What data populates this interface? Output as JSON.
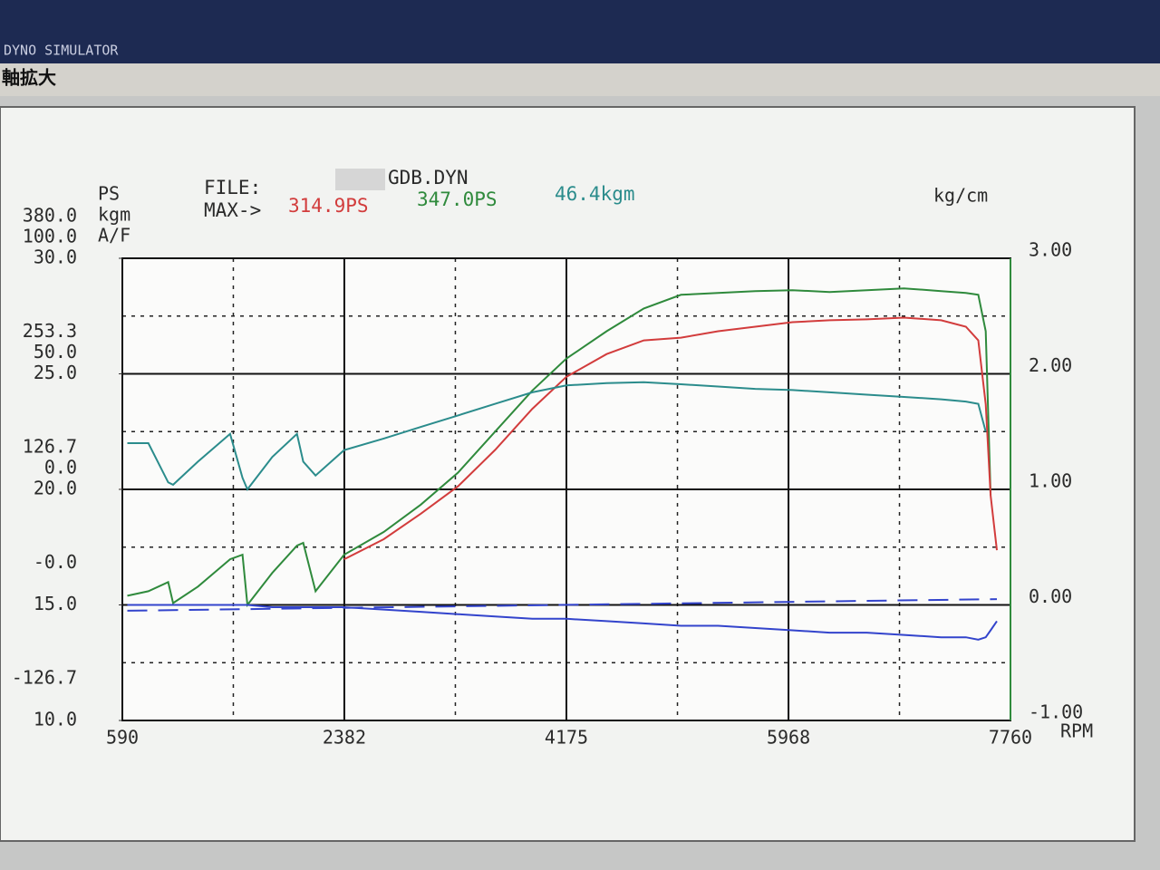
{
  "window": {
    "title": "DYNO SIMULATOR",
    "menu": "軸拡大"
  },
  "chart_data": {
    "type": "line",
    "file_label": "FILE:",
    "file_name": "GDB.DYN",
    "max_label": "MAX->",
    "max_values": [
      "314.9PS",
      "347.0PS",
      "46.4kgm"
    ],
    "x_label": "RPM",
    "x": [
      630,
      800,
      960,
      1000,
      1200,
      1460,
      1560,
      1600,
      1800,
      2000,
      2050,
      2150,
      2380,
      2700,
      3000,
      3300,
      3600,
      3900,
      4175,
      4500,
      4800,
      5100,
      5400,
      5700,
      6000,
      6300,
      6600,
      6900,
      7200,
      7400,
      7500,
      7560,
      7600,
      7650
    ],
    "xlim": [
      590,
      7760
    ],
    "xticks": [
      590,
      2382,
      4175,
      5968,
      7760
    ],
    "grid": true,
    "y_axes": [
      {
        "label": "PS",
        "color": "#c8302f",
        "ylim": [
          -126.7,
          380
        ],
        "yticks": [
          {
            "value": 380,
            "label": "380.0"
          },
          253.3,
          126.7,
          {
            "value": 0,
            "label": "-0.0"
          },
          -126.7
        ]
      },
      {
        "label": "kgm",
        "color": "#333333",
        "ylim": [
          -100,
          100
        ],
        "yticks": [
          {
            "value": 100,
            "label": "100.0"
          },
          {
            "value": 50,
            "label": "50.0"
          },
          {
            "value": 0,
            "label": "0.0"
          }
        ]
      },
      {
        "label": "A/F",
        "color": "#333333",
        "ylim": [
          10,
          30
        ],
        "yticks": [
          {
            "value": 30,
            "label": "30.0"
          },
          {
            "value": 25,
            "label": "25.0"
          },
          {
            "value": 20,
            "label": "20.0"
          },
          {
            "value": 15,
            "label": "15.0"
          },
          {
            "value": 10,
            "label": "10.0"
          }
        ]
      },
      {
        "label": "kg/cm",
        "color": "#222222",
        "ylim": [
          -1,
          3
        ],
        "yticks": [
          {
            "value": 3,
            "label": "3.00"
          },
          {
            "value": 2,
            "label": "2.00"
          },
          {
            "value": 1,
            "label": "1.00"
          },
          {
            "value": 0,
            "label": "0.00"
          },
          {
            "value": -1,
            "label": "-1.00"
          }
        ]
      }
    ],
    "series": [
      {
        "color": "#2f8a3c",
        "axis": 0,
        "values": [
          10,
          15,
          25,
          2,
          20,
          50,
          55,
          0,
          35,
          65,
          68,
          15,
          55,
          80,
          110,
          145,
          190,
          235,
          270,
          300,
          325,
          340,
          342,
          344,
          345,
          343,
          345,
          347,
          344,
          342,
          340,
          300,
          120,
          null
        ]
      },
      {
        "color": "#d23c3c",
        "axis": 0,
        "values": [
          null,
          null,
          null,
          null,
          null,
          null,
          null,
          null,
          null,
          null,
          null,
          null,
          50,
          72,
          100,
          130,
          170,
          215,
          250,
          275,
          290,
          293,
          300,
          305,
          310,
          312,
          313,
          314.9,
          312,
          305,
          290,
          220,
          120,
          60
        ]
      },
      {
        "color": "#2b8c8c",
        "axis": 1,
        "values": [
          20,
          20,
          3,
          2,
          12,
          24,
          5,
          0,
          14,
          24,
          12,
          6,
          17,
          22,
          27,
          32,
          37,
          42,
          45,
          46,
          46.4,
          45.5,
          44.5,
          43.5,
          43,
          42,
          41,
          40,
          39,
          38,
          37,
          25,
          null,
          null
        ]
      },
      {
        "color": "#3344cc",
        "axis": 2,
        "values": [
          15.0,
          15.0,
          15.0,
          15.0,
          15.0,
          15.0,
          15.0,
          15.0,
          14.9,
          14.9,
          14.9,
          14.9,
          14.9,
          14.8,
          14.7,
          14.6,
          14.5,
          14.4,
          14.4,
          14.3,
          14.2,
          14.1,
          14.1,
          14.0,
          13.9,
          13.8,
          13.8,
          13.7,
          13.6,
          13.6,
          13.5,
          13.6,
          13.9,
          14.3
        ]
      },
      {
        "color": "#3344cc",
        "axis": 3,
        "dashed": true,
        "x": [
          630,
          7650
        ],
        "values": [
          -0.05,
          0.05
        ]
      }
    ]
  }
}
